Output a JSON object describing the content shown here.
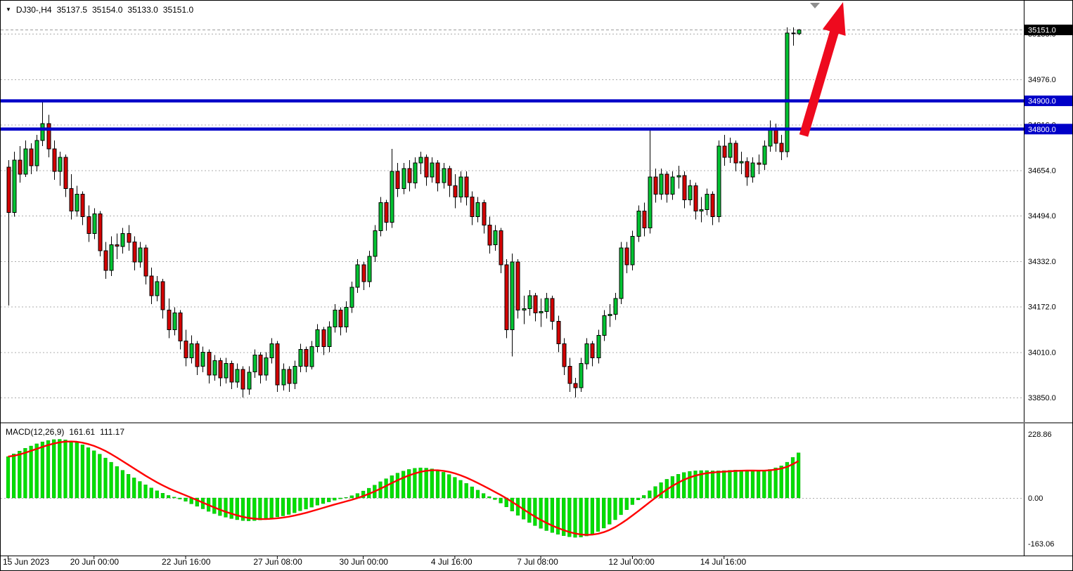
{
  "header": {
    "symbol_period": "DJ30-,H4",
    "open": "35137.5",
    "high": "35154.0",
    "low": "35133.0",
    "close": "35151.0"
  },
  "macd_panel": {
    "label": "MACD(12,26,9)",
    "macd_value": "161.61",
    "signal_value": "111.17"
  },
  "price_axis": {
    "current_price_label": "35151.0",
    "line_labels": [
      "34900.0",
      "34800.0"
    ]
  },
  "colors": {
    "bull": "#00C432",
    "bear": "#D40000",
    "macd_histogram": "#00DF00",
    "macd_signal": "#FF0000",
    "hline": "#0000C8",
    "arrow": "#EE0A1E",
    "grid": "#ACACAC",
    "badge_current": "#000000",
    "badge_text": "#FFFFFF"
  },
  "chart_data": {
    "type": "candlestick",
    "symbol": "DJ30-",
    "timeframe": "H4",
    "title": "DJ30-,H4 35137.5 35154.0 35133.0 35151.0",
    "current_price": 35151.0,
    "current_bar": {
      "open": 35137.5,
      "high": 35154.0,
      "low": 35133.0,
      "close": 35151.0
    },
    "horizontal_lines": [
      34900.0,
      34800.0
    ],
    "price_ticks": [
      35138.0,
      34976.0,
      34816.0,
      34654.0,
      34494.0,
      34332.0,
      34172.0,
      34010.0,
      33850.0
    ],
    "ylim": [
      33795.0,
      35260.0
    ],
    "grid": "dashed-horizontal",
    "legend_position": "none",
    "time_ticks": [
      {
        "label": "15 Jun 2023",
        "bar": 0
      },
      {
        "label": "20 Jun 00:00",
        "bar": 15
      },
      {
        "label": "22 Jun 16:00",
        "bar": 31
      },
      {
        "label": "27 Jun 08:00",
        "bar": 47
      },
      {
        "label": "30 Jun 00:00",
        "bar": 62
      },
      {
        "label": "4 Jul 16:00",
        "bar": 78
      },
      {
        "label": "7 Jul 08:00",
        "bar": 93
      },
      {
        "label": "12 Jul 00:00",
        "bar": 109
      },
      {
        "label": "14 Jul 16:00",
        "bar": 125
      }
    ],
    "ohlc": [
      [
        34665,
        34690,
        34175,
        34505
      ],
      [
        34505,
        34720,
        34490,
        34690
      ],
      [
        34690,
        34740,
        34610,
        34640
      ],
      [
        34640,
        34760,
        34630,
        34730
      ],
      [
        34730,
        34750,
        34640,
        34670
      ],
      [
        34670,
        34780,
        34650,
        34760
      ],
      [
        34760,
        34900,
        34740,
        34820
      ],
      [
        34820,
        34850,
        34700,
        34730
      ],
      [
        34730,
        34760,
        34620,
        34650
      ],
      [
        34650,
        34720,
        34600,
        34700
      ],
      [
        34700,
        34710,
        34560,
        34590
      ],
      [
        34590,
        34640,
        34480,
        34510
      ],
      [
        34510,
        34600,
        34490,
        34570
      ],
      [
        34570,
        34580,
        34460,
        34490
      ],
      [
        34490,
        34530,
        34400,
        34430
      ],
      [
        34430,
        34520,
        34410,
        34500
      ],
      [
        34500,
        34510,
        34350,
        34370
      ],
      [
        34370,
        34400,
        34270,
        34300
      ],
      [
        34300,
        34420,
        34280,
        34390
      ],
      [
        34390,
        34430,
        34340,
        34385
      ],
      [
        34385,
        34450,
        34360,
        34430
      ],
      [
        34430,
        34460,
        34370,
        34400
      ],
      [
        34400,
        34420,
        34300,
        34330
      ],
      [
        34330,
        34400,
        34310,
        34380
      ],
      [
        34380,
        34390,
        34250,
        34280
      ],
      [
        34280,
        34310,
        34180,
        34210
      ],
      [
        34210,
        34280,
        34190,
        34260
      ],
      [
        34260,
        34270,
        34130,
        34160
      ],
      [
        34160,
        34200,
        34060,
        34090
      ],
      [
        34090,
        34170,
        34070,
        34150
      ],
      [
        34150,
        34160,
        34020,
        34050
      ],
      [
        34050,
        34090,
        33960,
        33990
      ],
      [
        33990,
        34070,
        33970,
        34040
      ],
      [
        34040,
        34050,
        33930,
        33960
      ],
      [
        33960,
        34030,
        33940,
        34010
      ],
      [
        34010,
        34020,
        33900,
        33930
      ],
      [
        33930,
        34000,
        33910,
        33980
      ],
      [
        33980,
        33990,
        33890,
        33920
      ],
      [
        33920,
        33990,
        33900,
        33970
      ],
      [
        33970,
        33980,
        33880,
        33905
      ],
      [
        33905,
        33970,
        33885,
        33950
      ],
      [
        33950,
        33960,
        33850,
        33880
      ],
      [
        33880,
        33960,
        33860,
        33940
      ],
      [
        33940,
        34020,
        33920,
        34000
      ],
      [
        34000,
        34010,
        33900,
        33930
      ],
      [
        33930,
        34010,
        33910,
        33990
      ],
      [
        33990,
        34060,
        33970,
        34040
      ],
      [
        34040,
        34050,
        33870,
        33895
      ],
      [
        33895,
        33970,
        33875,
        33950
      ],
      [
        33950,
        33960,
        33870,
        33900
      ],
      [
        33900,
        33980,
        33880,
        33960
      ],
      [
        33960,
        34040,
        33940,
        34020
      ],
      [
        34020,
        34030,
        33940,
        33960
      ],
      [
        33960,
        34050,
        33950,
        34030
      ],
      [
        34030,
        34110,
        34010,
        34090
      ],
      [
        34090,
        34100,
        34000,
        34030
      ],
      [
        34030,
        34120,
        34010,
        34100
      ],
      [
        34100,
        34180,
        34080,
        34160
      ],
      [
        34160,
        34170,
        34070,
        34100
      ],
      [
        34100,
        34190,
        34080,
        34170
      ],
      [
        34170,
        34260,
        34150,
        34240
      ],
      [
        34240,
        34340,
        34220,
        34320
      ],
      [
        34320,
        34330,
        34230,
        34260
      ],
      [
        34260,
        34370,
        34240,
        34350
      ],
      [
        34350,
        34460,
        34330,
        34440
      ],
      [
        34440,
        34560,
        34420,
        34540
      ],
      [
        34540,
        34550,
        34440,
        34470
      ],
      [
        34470,
        34730,
        34450,
        34650
      ],
      [
        34650,
        34680,
        34560,
        34590
      ],
      [
        34590,
        34680,
        34570,
        34660
      ],
      [
        34660,
        34690,
        34580,
        34610
      ],
      [
        34610,
        34700,
        34590,
        34680
      ],
      [
        34680,
        34720,
        34640,
        34700
      ],
      [
        34700,
        34710,
        34600,
        34630
      ],
      [
        34630,
        34700,
        34610,
        34680
      ],
      [
        34680,
        34690,
        34580,
        34610
      ],
      [
        34610,
        34680,
        34590,
        34660
      ],
      [
        34660,
        34670,
        34560,
        34600
      ],
      [
        34600,
        34640,
        34520,
        34560
      ],
      [
        34560,
        34650,
        34540,
        34630
      ],
      [
        34630,
        34650,
        34530,
        34560
      ],
      [
        34560,
        34580,
        34460,
        34490
      ],
      [
        34490,
        34560,
        34470,
        34540
      ],
      [
        34540,
        34550,
        34430,
        34460
      ],
      [
        34460,
        34490,
        34360,
        34390
      ],
      [
        34390,
        34460,
        34370,
        34440
      ],
      [
        34440,
        34450,
        34290,
        34320
      ],
      [
        34320,
        34340,
        34060,
        34090
      ],
      [
        34090,
        34360,
        33995,
        34330
      ],
      [
        34330,
        34340,
        34130,
        34160
      ],
      [
        34160,
        34210,
        34110,
        34165
      ],
      [
        34165,
        34230,
        34140,
        34210
      ],
      [
        34210,
        34220,
        34120,
        34150
      ],
      [
        34150,
        34200,
        34100,
        34155
      ],
      [
        34155,
        34220,
        34130,
        34200
      ],
      [
        34200,
        34210,
        34090,
        34120
      ],
      [
        34120,
        34140,
        34010,
        34040
      ],
      [
        34040,
        34060,
        33930,
        33960
      ],
      [
        33960,
        33990,
        33870,
        33900
      ],
      [
        33900,
        33920,
        33850,
        33885
      ],
      [
        33885,
        33990,
        33870,
        33970
      ],
      [
        33970,
        34060,
        33950,
        34040
      ],
      [
        34040,
        34050,
        33960,
        33990
      ],
      [
        33990,
        34090,
        33970,
        34070
      ],
      [
        34070,
        34160,
        34050,
        34140
      ],
      [
        34140,
        34180,
        34100,
        34145
      ],
      [
        34145,
        34220,
        34125,
        34200
      ],
      [
        34200,
        34400,
        34180,
        34380
      ],
      [
        34380,
        34400,
        34290,
        34320
      ],
      [
        34320,
        34440,
        34300,
        34420
      ],
      [
        34420,
        34530,
        34400,
        34510
      ],
      [
        34510,
        34540,
        34420,
        34450
      ],
      [
        34450,
        34800,
        34430,
        34630
      ],
      [
        34630,
        34660,
        34540,
        34570
      ],
      [
        34570,
        34660,
        34550,
        34640
      ],
      [
        34640,
        34650,
        34540,
        34570
      ],
      [
        34570,
        34650,
        34550,
        34630
      ],
      [
        34630,
        34670,
        34590,
        34635
      ],
      [
        34635,
        34650,
        34520,
        34550
      ],
      [
        34550,
        34620,
        34530,
        34600
      ],
      [
        34600,
        34610,
        34480,
        34510
      ],
      [
        34510,
        34560,
        34470,
        34515
      ],
      [
        34515,
        34590,
        34495,
        34570
      ],
      [
        34570,
        34580,
        34460,
        34490
      ],
      [
        34490,
        34760,
        34470,
        34740
      ],
      [
        34740,
        34780,
        34670,
        34700
      ],
      [
        34700,
        34770,
        34680,
        34750
      ],
      [
        34750,
        34760,
        34650,
        34680
      ],
      [
        34680,
        34720,
        34640,
        34685
      ],
      [
        34685,
        34700,
        34600,
        34630
      ],
      [
        34630,
        34700,
        34610,
        34680
      ],
      [
        34680,
        34710,
        34640,
        34675
      ],
      [
        34675,
        34760,
        34655,
        34740
      ],
      [
        34740,
        34830,
        34720,
        34800
      ],
      [
        34800,
        34820,
        34720,
        34750
      ],
      [
        34750,
        34780,
        34690,
        34720
      ],
      [
        34720,
        35160,
        34700,
        35140
      ],
      [
        35140,
        35160,
        35095,
        35137.5
      ],
      [
        35137.5,
        35154,
        35133,
        35151
      ]
    ],
    "macd": {
      "settings": [
        12,
        26,
        9
      ],
      "ticks": [
        228.86,
        0.0,
        -163.06
      ],
      "ylim": [
        -200,
        250
      ],
      "last_macd": 161.61,
      "last_signal": 111.17,
      "histogram": [
        148,
        158,
        168,
        178,
        186,
        194,
        201,
        206,
        209,
        210,
        208,
        204,
        198,
        190,
        180,
        169,
        157,
        143,
        128,
        113,
        99,
        85,
        72,
        59,
        47,
        36,
        26,
        17,
        9,
        3,
        -4,
        -12,
        -21,
        -30,
        -39,
        -48,
        -56,
        -63,
        -69,
        -74,
        -78,
        -81,
        -82,
        -81,
        -79,
        -76,
        -71,
        -68,
        -64,
        -59,
        -53,
        -46,
        -40,
        -33,
        -26,
        -20,
        -14,
        -8,
        -3,
        2,
        8,
        16,
        25,
        35,
        46,
        58,
        69,
        80,
        89,
        96,
        102,
        106,
        108,
        107,
        104,
        99,
        92,
        84,
        74,
        63,
        52,
        40,
        28,
        16,
        5,
        -6,
        -18,
        -32,
        -47,
        -62,
        -76,
        -88,
        -99,
        -109,
        -117,
        -124,
        -130,
        -135,
        -139,
        -141,
        -140,
        -136,
        -129,
        -120,
        -108,
        -94,
        -78,
        -60,
        -42,
        -24,
        -7,
        9,
        26,
        41,
        55,
        67,
        77,
        85,
        91,
        95,
        97,
        98,
        98,
        97,
        97,
        98,
        99,
        100,
        100,
        99,
        98,
        97,
        98,
        102,
        108,
        115,
        128,
        145,
        161.61
      ]
    },
    "annotations": [
      {
        "type": "arrow",
        "direction": "up",
        "color": "#EE0A1E"
      }
    ]
  }
}
